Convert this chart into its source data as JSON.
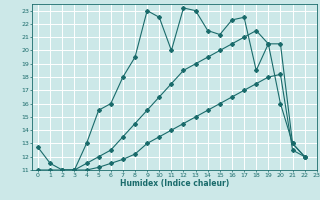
{
  "xlabel": "Humidex (Indice chaleur)",
  "xlim": [
    -0.5,
    23
  ],
  "ylim": [
    11,
    23.5
  ],
  "yticks": [
    11,
    12,
    13,
    14,
    15,
    16,
    17,
    18,
    19,
    20,
    21,
    22,
    23
  ],
  "xticks": [
    0,
    1,
    2,
    3,
    4,
    5,
    6,
    7,
    8,
    9,
    10,
    11,
    12,
    13,
    14,
    15,
    16,
    17,
    18,
    19,
    20,
    21,
    22,
    23
  ],
  "bg_color": "#cce8e8",
  "line_color": "#1a6b6b",
  "grid_color": "#ffffff",
  "line1_x": [
    0,
    1,
    2,
    3,
    4,
    5,
    6,
    7,
    8,
    9,
    10,
    11,
    12,
    13,
    14,
    15,
    16,
    17,
    18,
    19,
    20,
    21,
    22
  ],
  "line1_y": [
    12.7,
    11.5,
    11.0,
    11.0,
    13.0,
    15.5,
    16.0,
    18.0,
    19.5,
    23.0,
    22.5,
    20.0,
    23.2,
    23.0,
    21.5,
    21.2,
    22.3,
    22.5,
    18.5,
    20.5,
    16.0,
    13.0,
    12.0
  ],
  "line2_x": [
    2,
    3,
    4,
    5,
    6,
    7,
    8,
    9,
    10,
    11,
    12,
    13,
    14,
    15,
    16,
    17,
    18,
    19,
    20,
    21,
    22
  ],
  "line2_y": [
    11.0,
    11.0,
    11.5,
    12.0,
    12.5,
    13.5,
    14.5,
    15.5,
    16.5,
    17.5,
    18.5,
    19.0,
    19.5,
    20.0,
    20.5,
    21.0,
    21.5,
    20.5,
    20.5,
    13.0,
    12.0
  ],
  "line3_x": [
    0,
    1,
    2,
    3,
    4,
    5,
    6,
    7,
    8,
    9,
    10,
    11,
    12,
    13,
    14,
    15,
    16,
    17,
    18,
    19,
    20,
    21,
    22
  ],
  "line3_y": [
    11.0,
    11.0,
    11.0,
    11.0,
    11.0,
    11.2,
    11.5,
    11.8,
    12.2,
    13.0,
    13.5,
    14.0,
    14.5,
    15.0,
    15.5,
    16.0,
    16.5,
    17.0,
    17.5,
    18.0,
    18.2,
    12.5,
    12.0
  ]
}
